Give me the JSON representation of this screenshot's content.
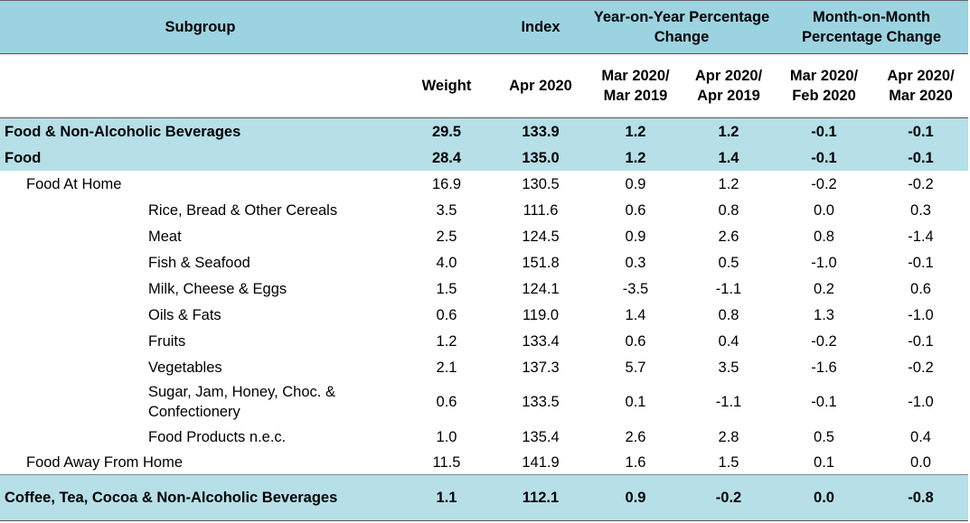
{
  "chart_data": {
    "type": "table",
    "columns": {
      "subgroup": "Subgroup",
      "index_group": "Index",
      "yoy_group": "Year-on-Year Percentage Change",
      "mom_group": "Month-on-Month Percentage Change",
      "weight": "Weight",
      "index": "Apr 2020",
      "yoy_mar": "Mar 2020/ Mar 2019",
      "yoy_apr": "Apr 2020/ Apr 2019",
      "mom_mar": "Mar 2020/ Feb 2020",
      "mom_apr": "Apr 2020/ Mar 2020"
    },
    "rows": [
      {
        "label": "Food & Non-Alcoholic Beverages",
        "weight": "29.5",
        "index": "133.9",
        "yoy_mar": "1.2",
        "yoy_apr": "1.2",
        "mom_mar": "-0.1",
        "mom_apr": "-0.1"
      },
      {
        "label": "Food",
        "weight": "28.4",
        "index": "135.0",
        "yoy_mar": "1.2",
        "yoy_apr": "1.4",
        "mom_mar": "-0.1",
        "mom_apr": "-0.1"
      },
      {
        "label": "Food At Home",
        "weight": "16.9",
        "index": "130.5",
        "yoy_mar": "0.9",
        "yoy_apr": "1.2",
        "mom_mar": "-0.2",
        "mom_apr": "-0.2"
      },
      {
        "label": "Rice, Bread & Other Cereals",
        "weight": "3.5",
        "index": "111.6",
        "yoy_mar": "0.6",
        "yoy_apr": "0.8",
        "mom_mar": "0.0",
        "mom_apr": "0.3"
      },
      {
        "label": "Meat",
        "weight": "2.5",
        "index": "124.5",
        "yoy_mar": "0.9",
        "yoy_apr": "2.6",
        "mom_mar": "0.8",
        "mom_apr": "-1.4"
      },
      {
        "label": "Fish & Seafood",
        "weight": "4.0",
        "index": "151.8",
        "yoy_mar": "0.3",
        "yoy_apr": "0.5",
        "mom_mar": "-1.0",
        "mom_apr": "-0.1"
      },
      {
        "label": "Milk, Cheese & Eggs",
        "weight": "1.5",
        "index": "124.1",
        "yoy_mar": "-3.5",
        "yoy_apr": "-1.1",
        "mom_mar": "0.2",
        "mom_apr": "0.6"
      },
      {
        "label": "Oils & Fats",
        "weight": "0.6",
        "index": "119.0",
        "yoy_mar": "1.4",
        "yoy_apr": "0.8",
        "mom_mar": "1.3",
        "mom_apr": "-1.0"
      },
      {
        "label": "Fruits",
        "weight": "1.2",
        "index": "133.4",
        "yoy_mar": "0.6",
        "yoy_apr": "0.4",
        "mom_mar": "-0.2",
        "mom_apr": "-0.1"
      },
      {
        "label": "Vegetables",
        "weight": "2.1",
        "index": "137.3",
        "yoy_mar": "5.7",
        "yoy_apr": "3.5",
        "mom_mar": "-1.6",
        "mom_apr": "-0.2"
      },
      {
        "label": "Sugar, Jam, Honey, Choc. & Confectionery",
        "weight": "0.6",
        "index": "133.5",
        "yoy_mar": "0.1",
        "yoy_apr": "-1.1",
        "mom_mar": "-0.1",
        "mom_apr": "-1.0"
      },
      {
        "label": "Food Products n.e.c.",
        "weight": "1.0",
        "index": "135.4",
        "yoy_mar": "2.6",
        "yoy_apr": "2.8",
        "mom_mar": "0.5",
        "mom_apr": "0.4"
      },
      {
        "label": "Food Away From Home",
        "weight": "11.5",
        "index": "141.9",
        "yoy_mar": "1.6",
        "yoy_apr": "1.5",
        "mom_mar": "0.1",
        "mom_apr": "0.0"
      },
      {
        "label": "Coffee, Tea, Cocoa & Non-Alcoholic Beverages",
        "weight": "1.1",
        "index": "112.1",
        "yoy_mar": "0.9",
        "yoy_apr": "-0.2",
        "mom_mar": "0.0",
        "mom_apr": "-0.8"
      }
    ],
    "colors": {
      "header": "#9cd3e1",
      "band": "#b6dfe8"
    }
  }
}
